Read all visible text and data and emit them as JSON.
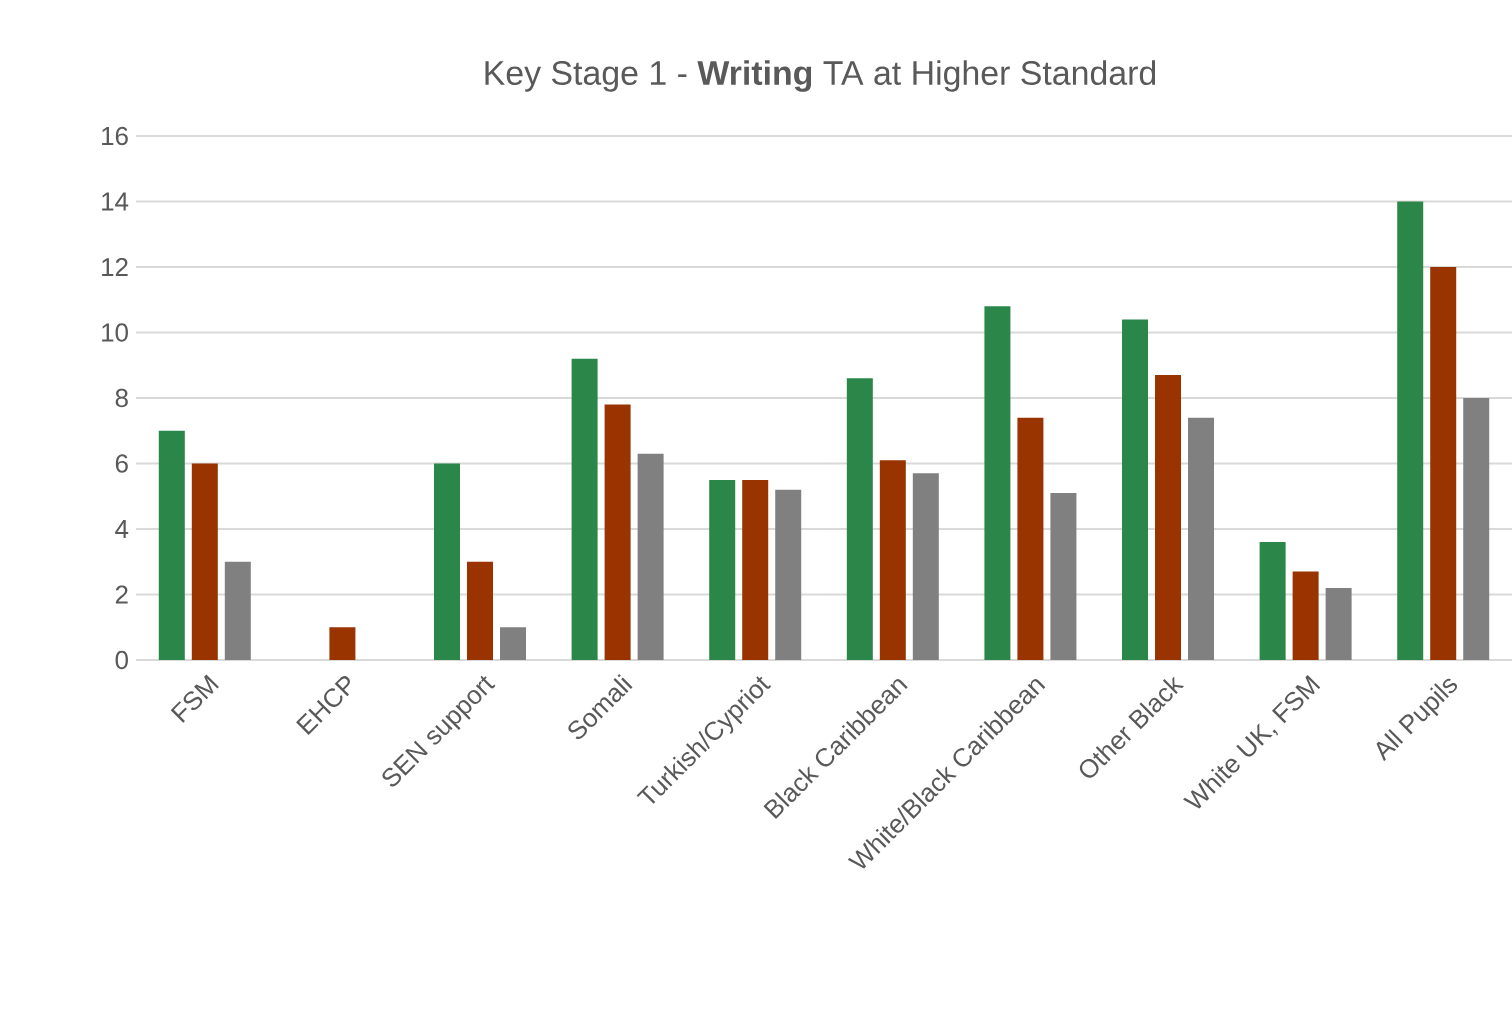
{
  "chart_data": {
    "type": "bar",
    "title": "Key Stage 1 - **Writing** TA at Higher Standard",
    "categories": [
      "FSM",
      "EHCP",
      "SEN support",
      "Somali",
      "Turkish/Cypriot",
      "Black Caribbean",
      "White/Black Caribbean",
      "Other Black",
      "White UK, FSM",
      "All Pupils"
    ],
    "series": [
      {
        "color": "#2a8749",
        "values": [
          7,
          0,
          6,
          9.2,
          5.5,
          8.6,
          10.8,
          10.4,
          3.6,
          14
        ]
      },
      {
        "color": "#993300",
        "values": [
          6,
          1,
          3,
          7.8,
          5.5,
          6.1,
          7.4,
          8.7,
          2.7,
          12
        ]
      },
      {
        "color": "#808080",
        "values": [
          3,
          0,
          1,
          6.3,
          5.2,
          5.7,
          5.1,
          7.4,
          2.2,
          8
        ]
      }
    ],
    "ylim": [
      0,
      16
    ],
    "yticks": [
      0,
      2,
      4,
      6,
      8,
      10,
      12,
      14,
      16
    ],
    "grid": "y"
  }
}
